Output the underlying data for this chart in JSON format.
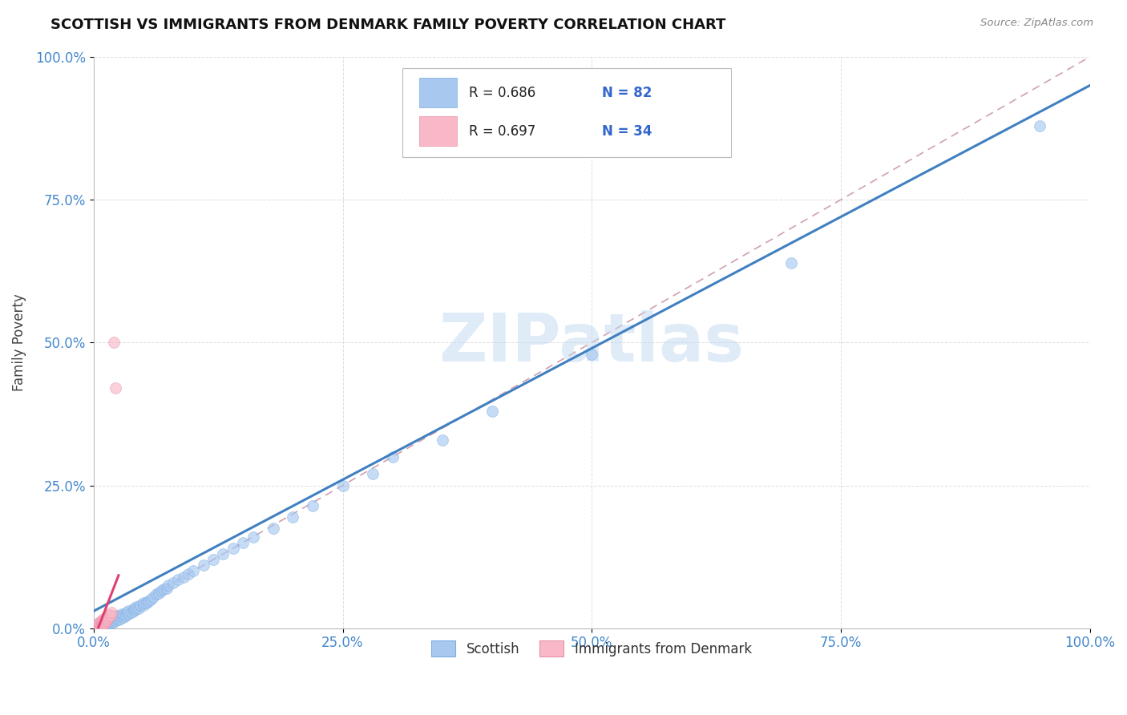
{
  "title": "SCOTTISH VS IMMIGRANTS FROM DENMARK FAMILY POVERTY CORRELATION CHART",
  "source_text": "Source: ZipAtlas.com",
  "ylabel": "Family Poverty",
  "xlim": [
    0,
    1
  ],
  "ylim": [
    0,
    1
  ],
  "xticks": [
    0.0,
    0.25,
    0.5,
    0.75,
    1.0
  ],
  "yticks": [
    0.0,
    0.25,
    0.5,
    0.75,
    1.0
  ],
  "xtick_labels": [
    "0.0%",
    "25.0%",
    "50.0%",
    "75.0%",
    "100.0%"
  ],
  "ytick_labels": [
    "0.0%",
    "25.0%",
    "50.0%",
    "75.0%",
    "100.0%"
  ],
  "watermark_text": "ZIPatlas",
  "blue_color": "#A8C8F0",
  "blue_edge_color": "#7BAEE0",
  "pink_color": "#F8B8C8",
  "pink_edge_color": "#E890A8",
  "blue_line_color": "#4080C0",
  "pink_line_color": "#E04070",
  "ref_line_color": "#D0A0B0",
  "grid_color": "#DDDDDD",
  "tick_color": "#4488CC",
  "title_color": "#111111",
  "source_color": "#888888",
  "ylabel_color": "#444444",
  "scatter_size": 100,
  "scatter_alpha": 0.65,
  "blue_line_slope": 0.92,
  "blue_line_intercept": 0.03,
  "pink_line_slope": 4.5,
  "pink_line_intercept": -0.02,
  "scottish_x": [
    0.005,
    0.005,
    0.005,
    0.008,
    0.008,
    0.008,
    0.01,
    0.01,
    0.01,
    0.01,
    0.012,
    0.012,
    0.012,
    0.013,
    0.013,
    0.015,
    0.015,
    0.015,
    0.015,
    0.017,
    0.017,
    0.018,
    0.018,
    0.018,
    0.02,
    0.02,
    0.02,
    0.022,
    0.022,
    0.023,
    0.025,
    0.025,
    0.027,
    0.027,
    0.028,
    0.03,
    0.03,
    0.032,
    0.033,
    0.035,
    0.035,
    0.038,
    0.04,
    0.04,
    0.042,
    0.043,
    0.045,
    0.047,
    0.05,
    0.05,
    0.053,
    0.055,
    0.057,
    0.06,
    0.063,
    0.065,
    0.068,
    0.07,
    0.073,
    0.075,
    0.08,
    0.085,
    0.09,
    0.095,
    0.1,
    0.11,
    0.12,
    0.13,
    0.14,
    0.15,
    0.16,
    0.18,
    0.2,
    0.22,
    0.25,
    0.28,
    0.3,
    0.35,
    0.4,
    0.5,
    0.7,
    0.95
  ],
  "scottish_y": [
    0.002,
    0.004,
    0.006,
    0.003,
    0.006,
    0.009,
    0.004,
    0.007,
    0.01,
    0.014,
    0.005,
    0.008,
    0.012,
    0.006,
    0.01,
    0.007,
    0.011,
    0.015,
    0.018,
    0.009,
    0.013,
    0.01,
    0.014,
    0.017,
    0.011,
    0.016,
    0.02,
    0.013,
    0.018,
    0.022,
    0.015,
    0.02,
    0.017,
    0.022,
    0.025,
    0.019,
    0.024,
    0.022,
    0.027,
    0.025,
    0.03,
    0.028,
    0.03,
    0.035,
    0.033,
    0.038,
    0.035,
    0.04,
    0.04,
    0.045,
    0.045,
    0.048,
    0.05,
    0.055,
    0.06,
    0.062,
    0.065,
    0.068,
    0.07,
    0.075,
    0.08,
    0.085,
    0.09,
    0.095,
    0.1,
    0.11,
    0.12,
    0.13,
    0.14,
    0.15,
    0.16,
    0.175,
    0.195,
    0.215,
    0.25,
    0.27,
    0.3,
    0.33,
    0.38,
    0.48,
    0.64,
    0.88
  ],
  "denmark_x": [
    0.003,
    0.003,
    0.004,
    0.005,
    0.005,
    0.005,
    0.006,
    0.006,
    0.006,
    0.007,
    0.007,
    0.007,
    0.008,
    0.008,
    0.008,
    0.009,
    0.009,
    0.01,
    0.01,
    0.01,
    0.011,
    0.011,
    0.012,
    0.012,
    0.013,
    0.013,
    0.014,
    0.014,
    0.015,
    0.016,
    0.017,
    0.018,
    0.02,
    0.022
  ],
  "denmark_y": [
    0.003,
    0.005,
    0.005,
    0.003,
    0.006,
    0.009,
    0.004,
    0.007,
    0.01,
    0.005,
    0.008,
    0.012,
    0.006,
    0.01,
    0.014,
    0.007,
    0.012,
    0.008,
    0.013,
    0.017,
    0.01,
    0.015,
    0.012,
    0.018,
    0.014,
    0.02,
    0.017,
    0.022,
    0.019,
    0.024,
    0.022,
    0.027,
    0.5,
    0.42
  ]
}
